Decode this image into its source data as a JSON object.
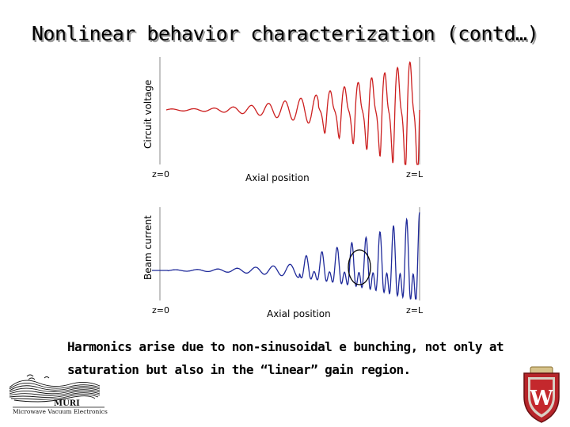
{
  "slide": {
    "title": "Nonlinear behavior characterization (contd…)",
    "caption_line1": "Harmonics arise due to non-sinusoidal e bunching, not only at",
    "caption_line2": "saturation but also in the “linear” gain region."
  },
  "plots": {
    "top": {
      "ylabel": "Circuit voltage",
      "xlabel": "Axial position",
      "tick_left": "z=0",
      "tick_right": "z=L",
      "color": "#cc1f1f"
    },
    "bottom": {
      "ylabel": "Beam current",
      "xlabel": "Axial position",
      "tick_left": "z=0",
      "tick_right": "z=L",
      "color": "#1f2a9a"
    }
  },
  "logos": {
    "muri_text": "MURI",
    "muri_subtitle": "Microwave Vacuum Electronics",
    "w_letter": "W"
  }
}
